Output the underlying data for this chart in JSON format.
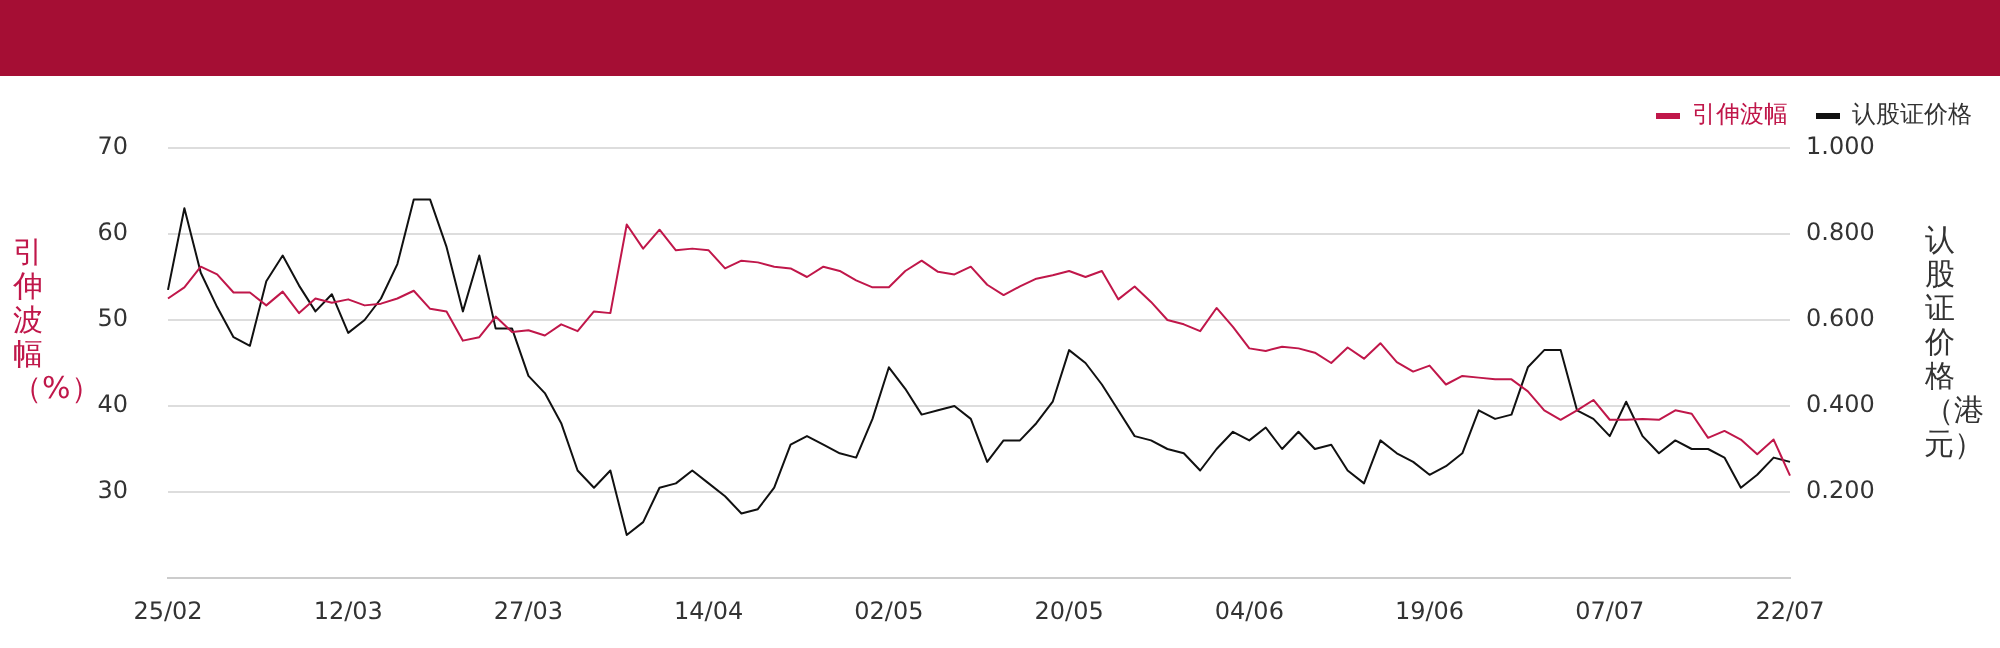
{
  "chart_data": {
    "type": "line",
    "ylabel": "引伸波幅（%）",
    "y2label": "认股证价格（港元）",
    "categories": [
      "25/02",
      null,
      null,
      null,
      null,
      null,
      null,
      null,
      null,
      null,
      null,
      "12/03",
      null,
      null,
      null,
      null,
      null,
      null,
      null,
      null,
      null,
      null,
      "27/03",
      null,
      null,
      null,
      null,
      null,
      null,
      null,
      null,
      null,
      null,
      "14/04",
      null,
      null,
      null,
      null,
      null,
      null,
      null,
      null,
      null,
      null,
      "02/05",
      null,
      null,
      null,
      null,
      null,
      null,
      null,
      null,
      null,
      null,
      "20/05",
      null,
      null,
      null,
      null,
      null,
      null,
      null,
      null,
      null,
      null,
      "04/06",
      null,
      null,
      null,
      null,
      null,
      null,
      null,
      null,
      null,
      null,
      "19/06",
      null,
      null,
      null,
      null,
      null,
      null,
      null,
      null,
      null,
      null,
      "07/07",
      null,
      null,
      null,
      null,
      null,
      null,
      null,
      null,
      null,
      null,
      "22/07"
    ],
    "series": [
      {
        "name": "引伸波幅",
        "color": "#c0174a",
        "values": [
          52.5,
          53.8,
          56.2,
          55.3,
          53.2,
          53.2,
          51.7,
          53.3,
          50.8,
          52.5,
          52.0,
          52.4,
          51.7,
          51.9,
          52.5,
          53.4,
          51.3,
          51.0,
          47.6,
          48.0,
          50.4,
          48.6,
          48.8,
          48.2,
          49.5,
          48.7,
          51.0,
          50.8,
          61.1,
          58.3,
          60.5,
          58.1,
          58.3,
          58.1,
          56.0,
          56.9,
          56.7,
          56.2,
          56.0,
          55.0,
          56.2,
          55.7,
          54.6,
          53.8,
          53.8,
          55.7,
          56.9,
          55.6,
          55.3,
          56.2,
          54.1,
          52.9,
          53.9,
          54.8,
          55.2,
          55.7,
          55.0,
          55.7,
          52.4,
          53.9,
          52.1,
          50.0,
          49.5,
          48.7,
          51.4,
          49.2,
          46.7,
          46.4,
          46.9,
          46.7,
          46.2,
          45.0,
          46.8,
          45.5,
          47.3,
          45.1,
          44.0,
          44.7,
          42.5,
          43.5,
          43.3,
          43.1,
          43.1,
          41.7,
          39.5,
          38.4,
          39.5,
          40.7,
          38.4,
          38.4,
          38.5,
          38.4,
          39.5,
          39.1,
          36.3,
          37.1,
          36.1,
          34.4,
          36.1,
          31.9
        ]
      },
      {
        "name": "认股证价格",
        "color": "#111111",
        "axis": "y2",
        "values": [
          0.67,
          0.86,
          0.71,
          0.63,
          0.56,
          0.54,
          0.69,
          0.75,
          0.68,
          0.62,
          0.66,
          0.57,
          0.6,
          0.65,
          0.73,
          0.88,
          0.88,
          0.77,
          0.62,
          0.75,
          0.58,
          0.58,
          0.47,
          0.43,
          0.36,
          0.25,
          0.21,
          0.25,
          0.1,
          0.13,
          0.21,
          0.22,
          0.25,
          0.22,
          0.19,
          0.15,
          0.16,
          0.21,
          0.31,
          0.33,
          0.31,
          0.29,
          0.28,
          0.37,
          0.49,
          0.44,
          0.38,
          0.39,
          0.4,
          0.37,
          0.27,
          0.32,
          0.32,
          0.36,
          0.41,
          0.53,
          0.5,
          0.45,
          0.39,
          0.33,
          0.32,
          0.3,
          0.29,
          0.25,
          0.3,
          0.34,
          0.32,
          0.35,
          0.3,
          0.34,
          0.3,
          0.31,
          0.25,
          0.22,
          0.32,
          0.29,
          0.27,
          0.24,
          0.26,
          0.29,
          0.39,
          0.37,
          0.38,
          0.49,
          0.53,
          0.53,
          0.39,
          0.37,
          0.33,
          0.41,
          0.33,
          0.29,
          0.32,
          0.3,
          0.3,
          0.28,
          0.21,
          0.24,
          0.28,
          0.27
        ]
      }
    ],
    "ylim": [
      20,
      70
    ],
    "yticks": [
      30,
      40,
      50,
      60,
      70
    ],
    "y2lim": [
      0,
      1
    ],
    "y2ticks": [
      {
        "value": 0.2,
        "label": "0.200"
      },
      {
        "value": 0.4,
        "label": "0.400"
      },
      {
        "value": 0.6,
        "label": "0.600"
      },
      {
        "value": 0.8,
        "label": "0.800"
      },
      {
        "value": 1,
        "label": "1.000"
      }
    ],
    "grid": "y",
    "legend": "top right"
  }
}
